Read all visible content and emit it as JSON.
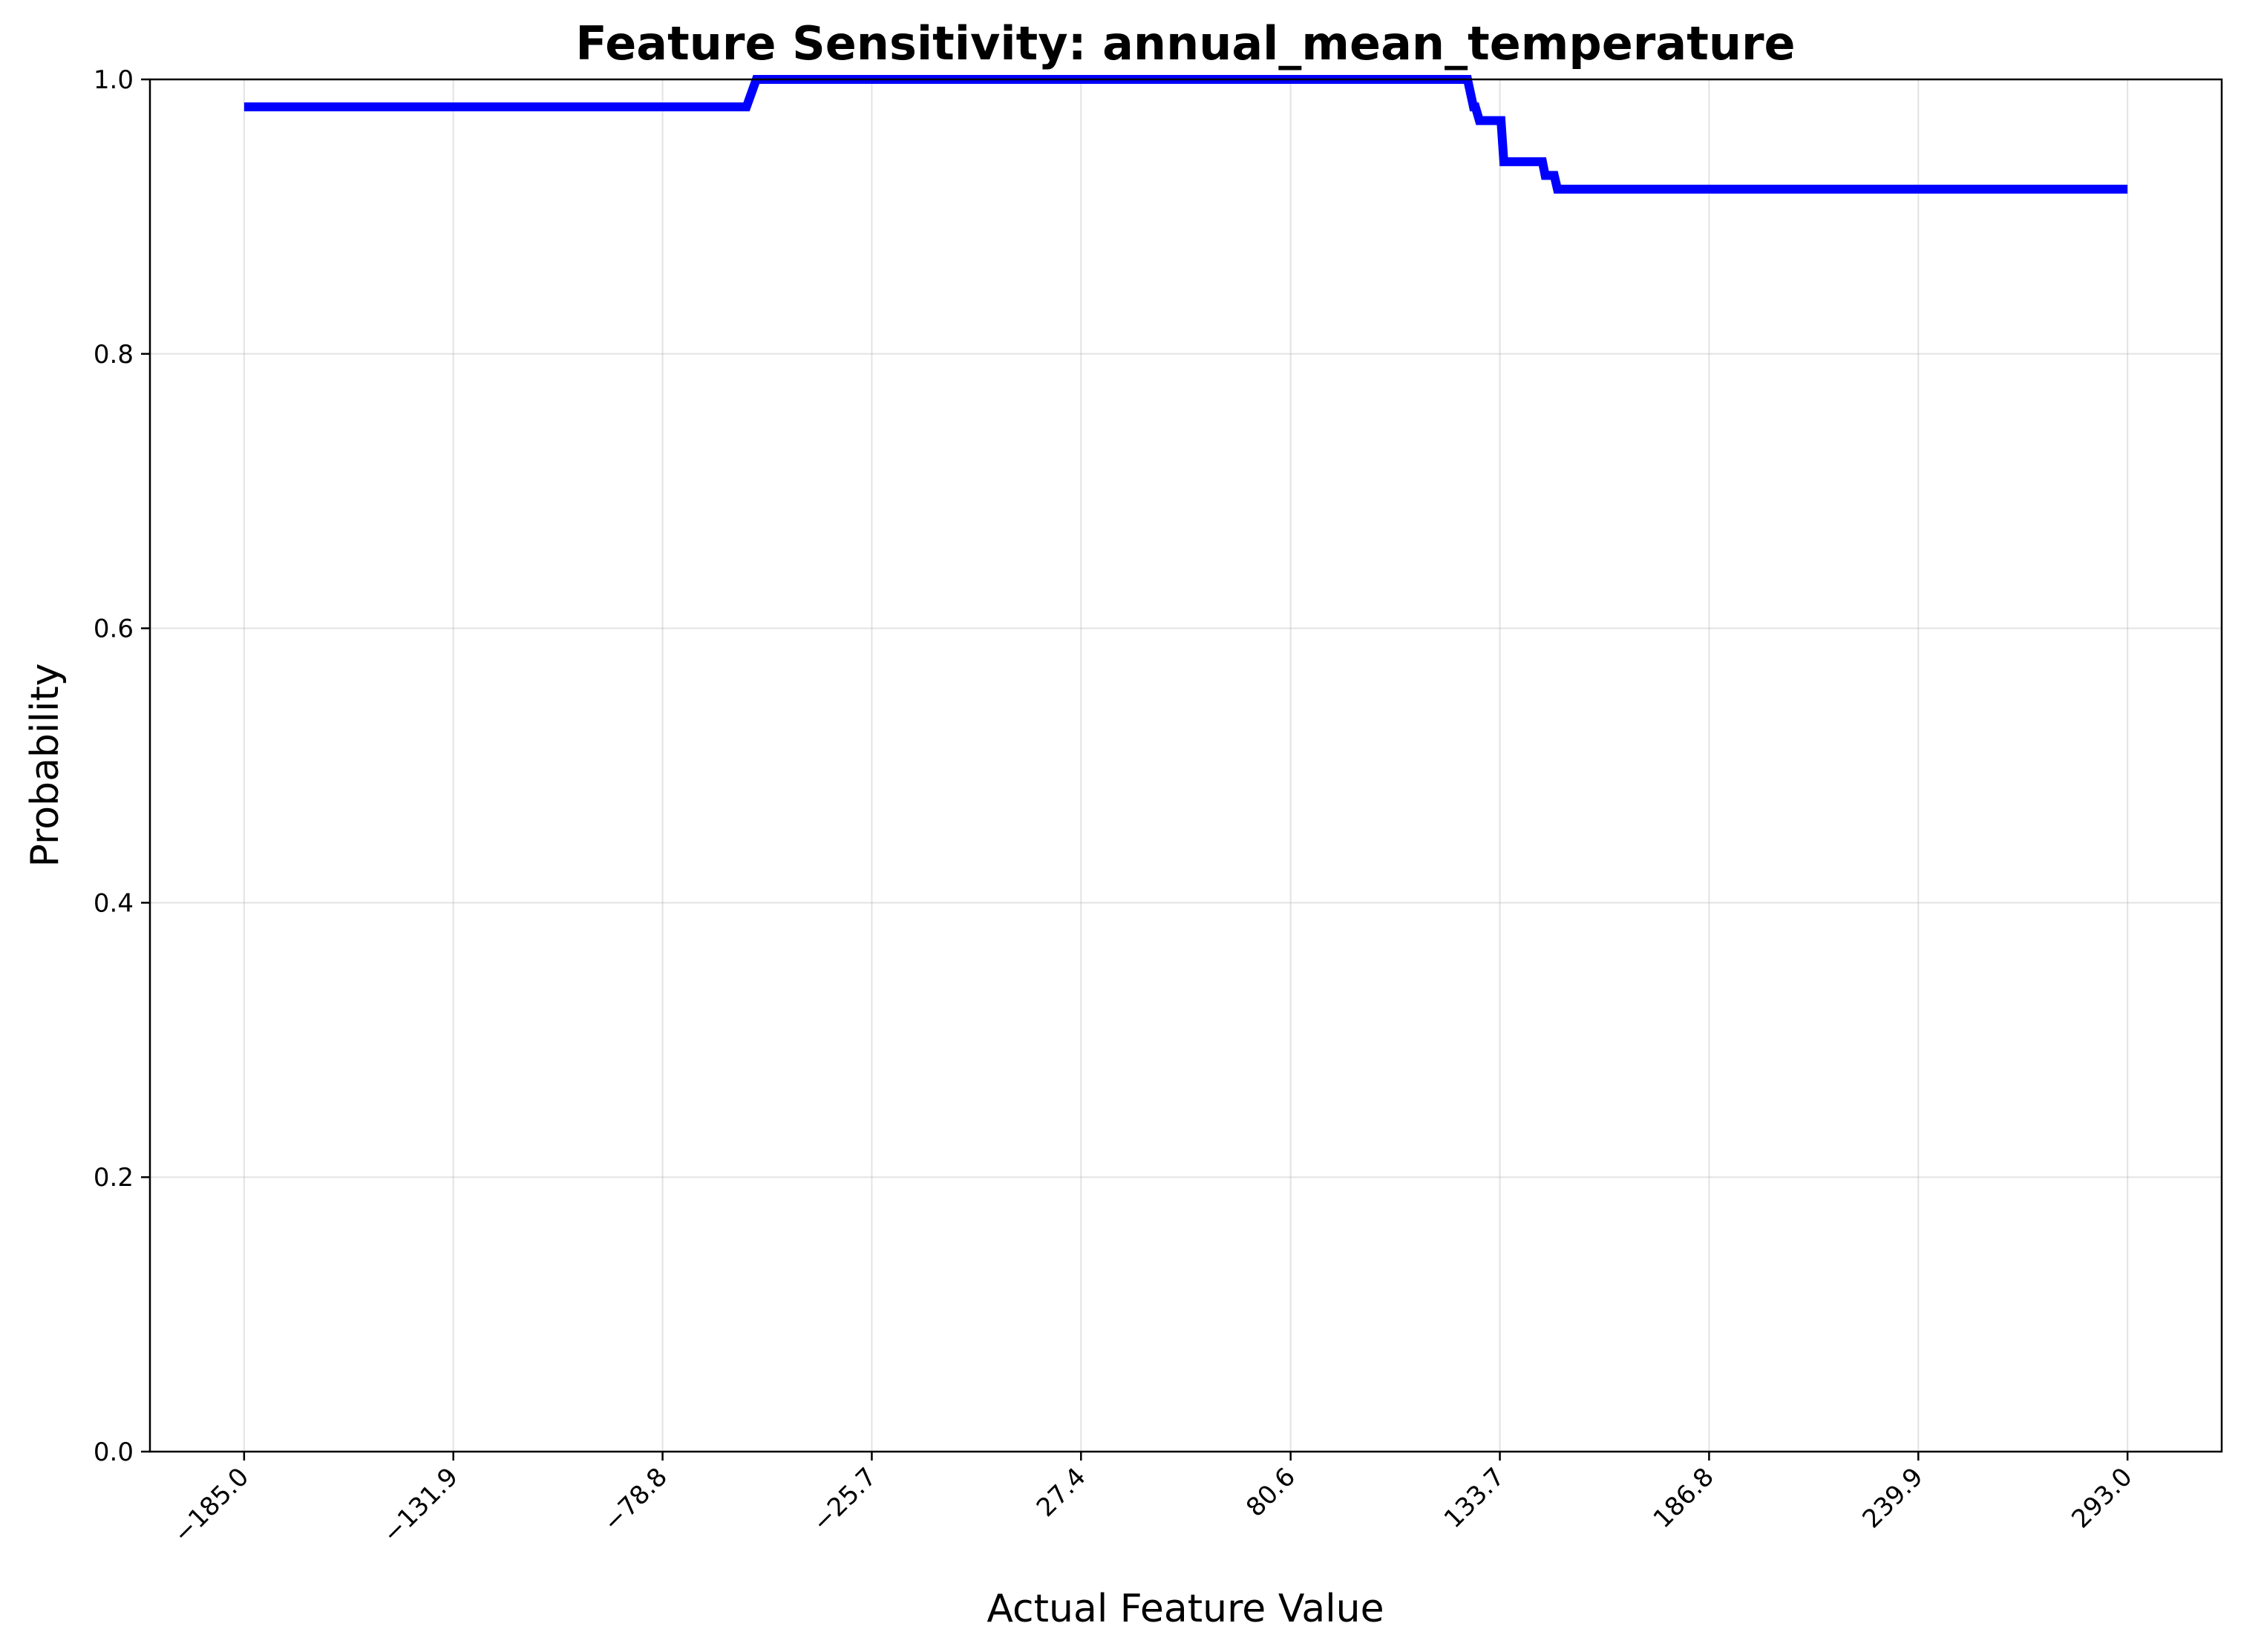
{
  "chart_data": {
    "type": "line",
    "title": "Feature Sensitivity: annual_mean_temperature",
    "xlabel": "Actual Feature Value",
    "ylabel": "Probability",
    "xlim": [
      -208.9,
      316.9
    ],
    "ylim": [
      0.0,
      1.0
    ],
    "x_ticks": [
      -185.0,
      -131.9,
      -78.8,
      -25.7,
      27.4,
      80.6,
      133.7,
      186.8,
      239.9,
      293.0
    ],
    "x_tick_labels": [
      "−185.0",
      "−131.9",
      "−78.8",
      "−25.7",
      "27.4",
      "80.6",
      "133.7",
      "186.8",
      "239.9",
      "293.0"
    ],
    "y_ticks": [
      0.0,
      0.2,
      0.4,
      0.6,
      0.8,
      1.0
    ],
    "y_tick_labels": [
      "0.0",
      "0.2",
      "0.4",
      "0.6",
      "0.8",
      "1.0"
    ],
    "grid": true,
    "series": [
      {
        "color": "#0000ff",
        "x": [
          -185.0,
          -57.5,
          -55.0,
          125.5,
          127.0,
          127.5,
          128.5,
          134.0,
          134.7,
          144.5,
          145.2,
          147.5,
          148.3,
          293.0
        ],
        "y": [
          0.98,
          0.98,
          1.0,
          1.0,
          0.98,
          0.98,
          0.97,
          0.97,
          0.94,
          0.94,
          0.93,
          0.93,
          0.92,
          0.92
        ]
      }
    ]
  }
}
